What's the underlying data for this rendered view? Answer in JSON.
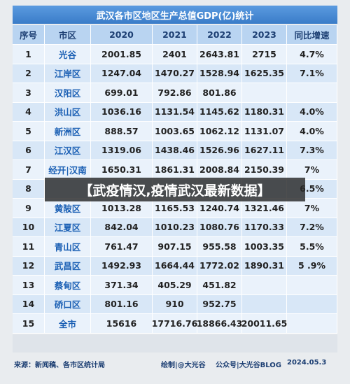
{
  "title": "武汉各市区地区生产总值GDP(亿)统计",
  "table": {
    "header": [
      "序号",
      "市区",
      "2020",
      "2021",
      "2022",
      "2023",
      "同比增速"
    ],
    "rows": [
      [
        "1",
        "光谷",
        "2001.85",
        "2401",
        "2643.81",
        "2715",
        "4.7%"
      ],
      [
        "2",
        "江岸区",
        "1247.04",
        "1470.27",
        "1528.94",
        "1625.35",
        "7.1%"
      ],
      [
        "3",
        "汉阳区",
        "699.01",
        "792.86",
        "801.86",
        null,
        null
      ],
      [
        "4",
        "洪山区",
        "1036.16",
        "1131.54",
        "1145.62",
        "1180.31",
        "4.0%"
      ],
      [
        "5",
        "新洲区",
        "888.57",
        "1003.65",
        "1062.12",
        "1131.07",
        "4.0%"
      ],
      [
        "6",
        "江汉区",
        "1319.06",
        "1438.46",
        "1526.96",
        "1627.11",
        "7.3%"
      ],
      [
        "7",
        "经开|汉南",
        "1650.31",
        "1861.31",
        "2008.84",
        "2150.39",
        "7%"
      ],
      [
        "8",
        null,
        null,
        null,
        null,
        null,
        "6.5%"
      ],
      [
        "9",
        "黄陂区",
        "1013.28",
        "1165.53",
        "1240.74",
        "1321.46",
        "7%"
      ],
      [
        "10",
        "江夏区",
        "842.04",
        "1010.23",
        "1080.76",
        "1170.33",
        "7.2%"
      ],
      [
        "11",
        "青山区",
        "761.47",
        "907.15",
        "955.58",
        "1003.35",
        "5.5%"
      ],
      [
        "12",
        "武昌区",
        "1492.93",
        "1664.44",
        "1772.02",
        "1890.31",
        "5 .9%"
      ],
      [
        "13",
        "蔡甸区",
        "371.34",
        "405.29",
        "451.82",
        null,
        null
      ],
      [
        "14",
        "硚口区",
        "801.16",
        "910",
        "952.75",
        null,
        null
      ],
      [
        "15",
        "全市",
        "15616",
        "17716.76",
        "18866.43",
        "20011.65",
        null
      ]
    ]
  },
  "banner": "【武疫情汉,疫情武汉最新数据】",
  "footer": {
    "source": "来源：新闻稿、各市区统计局",
    "author": "绘制|@大光谷",
    "account": "公众号|大光谷BLOG",
    "date": "2024.05.3"
  }
}
